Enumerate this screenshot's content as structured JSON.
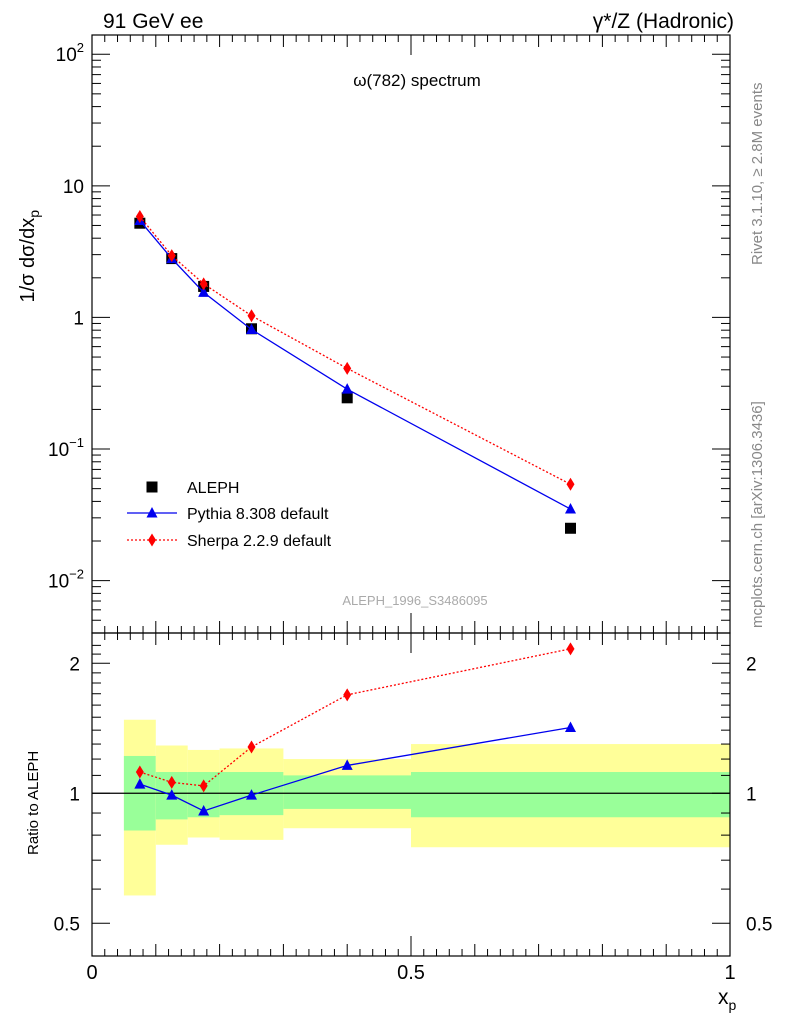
{
  "header": {
    "left": "91 GeV ee",
    "right": "γ*/Z (Hadronic)"
  },
  "side_text": {
    "rivet": "Rivet 3.1.10, ≥ 2.8M events",
    "mcplots": "mcplots.cern.ch [arXiv:1306.3436]"
  },
  "chart_data": [
    {
      "type": "scatter",
      "title": "ω(782) spectrum",
      "ylabel": "1/σ dσ/dx",
      "ylabel_sub": "p",
      "watermark": "ALEPH_1996_S3486095",
      "yscale": "log",
      "xlim": [
        0,
        1
      ],
      "ylim": [
        0.004,
        140
      ],
      "y_ticks": [
        {
          "value": 0.01,
          "base": "10",
          "exp": "−2"
        },
        {
          "value": 0.1,
          "base": "10",
          "exp": "−1"
        },
        {
          "value": 1,
          "base": "1",
          "exp": ""
        },
        {
          "value": 10,
          "base": "10",
          "exp": ""
        },
        {
          "value": 100,
          "base": "10",
          "exp": "2"
        }
      ],
      "legend_position": "bottom-left",
      "series": [
        {
          "name": "ALEPH",
          "marker": "square",
          "color": "#000000",
          "line": "none",
          "x": [
            0.075,
            0.125,
            0.175,
            0.25,
            0.4,
            0.75
          ],
          "y": [
            5.2,
            2.8,
            1.72,
            0.82,
            0.245,
            0.025
          ]
        },
        {
          "name": "Pythia 8.308 default",
          "marker": "triangle",
          "color": "#0000ee",
          "line": "solid",
          "x": [
            0.075,
            0.125,
            0.175,
            0.25,
            0.4,
            0.75
          ],
          "y": [
            5.45,
            2.8,
            1.55,
            0.81,
            0.285,
            0.035
          ]
        },
        {
          "name": "Sherpa 2.2.9 default",
          "marker": "diamond",
          "color": "#ff0000",
          "line": "dotted",
          "x": [
            0.075,
            0.125,
            0.175,
            0.25,
            0.4,
            0.75
          ],
          "y": [
            5.85,
            2.95,
            1.8,
            1.03,
            0.41,
            0.054
          ]
        }
      ]
    },
    {
      "type": "line",
      "ylabel": "Ratio to ALEPH",
      "xlabel": "x",
      "xlabel_sub": "p",
      "yscale": "log",
      "xlim": [
        0,
        1
      ],
      "ylim": [
        0.42,
        2.35
      ],
      "y_ticks": [
        0.5,
        1,
        2
      ],
      "x_ticks": [
        "0",
        "0.5",
        "1"
      ],
      "reference_line": 1,
      "uncertainty_bands": {
        "bins": [
          {
            "x0": 0.05,
            "x1": 0.1,
            "inner": [
              0.82,
              1.22
            ],
            "outer": [
              0.58,
              1.48
            ]
          },
          {
            "x0": 0.1,
            "x1": 0.15,
            "inner": [
              0.87,
              1.12
            ],
            "outer": [
              0.76,
              1.29
            ]
          },
          {
            "x0": 0.15,
            "x1": 0.2,
            "inner": [
              0.88,
              1.12
            ],
            "outer": [
              0.79,
              1.26
            ]
          },
          {
            "x0": 0.2,
            "x1": 0.3,
            "inner": [
              0.89,
              1.12
            ],
            "outer": [
              0.78,
              1.27
            ]
          },
          {
            "x0": 0.3,
            "x1": 0.5,
            "inner": [
              0.92,
              1.1
            ],
            "outer": [
              0.83,
              1.2
            ]
          },
          {
            "x0": 0.5,
            "x1": 1.0,
            "inner": [
              0.88,
              1.12
            ],
            "outer": [
              0.75,
              1.3
            ]
          }
        ],
        "inner_color": "#99ff99",
        "outer_color": "#ffff99"
      },
      "series": [
        {
          "name": "Pythia 8.308 default",
          "marker": "triangle",
          "color": "#0000ee",
          "line": "solid",
          "x": [
            0.075,
            0.125,
            0.175,
            0.25,
            0.4,
            0.75
          ],
          "y": [
            1.05,
            0.99,
            0.91,
            0.99,
            1.16,
            1.42
          ]
        },
        {
          "name": "Sherpa 2.2.9 default",
          "marker": "diamond",
          "color": "#ff0000",
          "line": "dotted",
          "x": [
            0.075,
            0.125,
            0.175,
            0.25,
            0.4,
            0.75
          ],
          "y": [
            1.12,
            1.06,
            1.04,
            1.28,
            1.69,
            2.16
          ]
        }
      ]
    }
  ]
}
